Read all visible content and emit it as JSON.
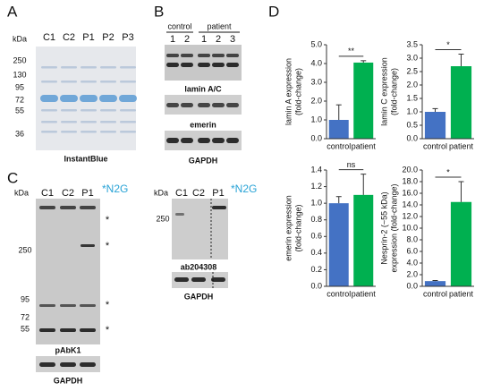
{
  "panel_labels": [
    "A",
    "B",
    "C",
    "D"
  ],
  "panel_a": {
    "kda": "kDa",
    "markers": [
      "250",
      "130",
      "95",
      "72",
      "55",
      "36"
    ],
    "lanes": [
      "C1",
      "C2",
      "P1",
      "P2",
      "P3"
    ],
    "stain": "InstantBlue"
  },
  "panel_b": {
    "groups": [
      "control",
      "patient"
    ],
    "lanes": [
      "1",
      "2",
      "1",
      "2",
      "3"
    ],
    "blots": [
      "lamin A/C",
      "emerin",
      "GAPDH"
    ]
  },
  "panel_c": {
    "left": {
      "kda": "kDa",
      "lanes": [
        "C1",
        "C2",
        "P1"
      ],
      "band_label": "*N2G",
      "markers": [
        "250",
        "95",
        "72",
        "55"
      ],
      "asterisks": [
        "*",
        "*",
        "*",
        "*"
      ],
      "antibody": "pAbK1",
      "loading": "GAPDH"
    },
    "right": {
      "kda": "kDa",
      "lanes": [
        "C1",
        "C2",
        "P1"
      ],
      "band_label": "*N2G",
      "markers": [
        "250"
      ],
      "antibody": "ab204308",
      "loading": "GAPDH"
    }
  },
  "chart_data": [
    {
      "type": "bar",
      "y_label": [
        "lamin A expression",
        "(fold-change)"
      ],
      "categories": [
        "control",
        "patient"
      ],
      "values": [
        1.0,
        4.05
      ],
      "errors": [
        0.8,
        0.1
      ],
      "colors": [
        "#4472c4",
        "#00b050"
      ],
      "ylim": [
        0,
        5
      ],
      "yticks": [
        {
          "value": 0,
          "label": "0.0"
        },
        {
          "value": 1,
          "label": "1.0"
        },
        {
          "value": 2,
          "label": "2.0"
        },
        {
          "value": 3,
          "label": "3.0"
        },
        {
          "value": 4,
          "label": "4.0"
        },
        {
          "value": 5,
          "label": "5.0"
        }
      ],
      "significance": "**"
    },
    {
      "type": "bar",
      "y_label": [
        "lamin C expression",
        "(fold-change)"
      ],
      "categories": [
        "control",
        "patient"
      ],
      "values": [
        1.0,
        2.7
      ],
      "errors": [
        0.12,
        0.45
      ],
      "colors": [
        "#4472c4",
        "#00b050"
      ],
      "ylim": [
        0,
        3.5
      ],
      "yticks": [
        {
          "value": 0,
          "label": "0.0"
        },
        {
          "value": 0.5,
          "label": "0.5"
        },
        {
          "value": 1,
          "label": "1.0"
        },
        {
          "value": 1.5,
          "label": "1.5"
        },
        {
          "value": 2,
          "label": "2.0"
        },
        {
          "value": 2.5,
          "label": "2.5"
        },
        {
          "value": 3,
          "label": "3.0"
        },
        {
          "value": 3.5,
          "label": "3.5"
        }
      ],
      "significance": "*"
    },
    {
      "type": "bar",
      "y_label": [
        "emerin expression",
        "(fold-change)"
      ],
      "categories": [
        "control",
        "patient"
      ],
      "values": [
        1.0,
        1.1
      ],
      "errors": [
        0.08,
        0.25
      ],
      "colors": [
        "#4472c4",
        "#00b050"
      ],
      "ylim": [
        0,
        1.4
      ],
      "yticks": [
        {
          "value": 0,
          "label": "0.0"
        },
        {
          "value": 0.2,
          "label": "0.2"
        },
        {
          "value": 0.4,
          "label": "0.4"
        },
        {
          "value": 0.6,
          "label": "0.6"
        },
        {
          "value": 0.8,
          "label": "0.8"
        },
        {
          "value": 1,
          "label": "1.0"
        },
        {
          "value": 1.2,
          "label": "1.2"
        },
        {
          "value": 1.4,
          "label": "1.4"
        }
      ],
      "significance": "ns"
    },
    {
      "type": "bar",
      "y_label": [
        "Nesprin-2 (~55 kDa)",
        "expression (fold-change)"
      ],
      "categories": [
        "control",
        "patient"
      ],
      "values": [
        0.9,
        14.5
      ],
      "errors": [
        0.1,
        3.5
      ],
      "colors": [
        "#4472c4",
        "#00b050"
      ],
      "ylim": [
        0,
        20
      ],
      "yticks": [
        {
          "value": 0,
          "label": "0.0"
        },
        {
          "value": 2,
          "label": "2.0"
        },
        {
          "value": 4,
          "label": "4.0"
        },
        {
          "value": 6,
          "label": "6.0"
        },
        {
          "value": 8,
          "label": "8.0"
        },
        {
          "value": 10,
          "label": "10.0"
        },
        {
          "value": 12,
          "label": "12.0"
        },
        {
          "value": 14,
          "label": "14.0"
        },
        {
          "value": 16,
          "label": "16.0"
        },
        {
          "value": 18,
          "label": "18.0"
        },
        {
          "value": 20,
          "label": "20.0"
        }
      ],
      "significance": "*"
    }
  ]
}
